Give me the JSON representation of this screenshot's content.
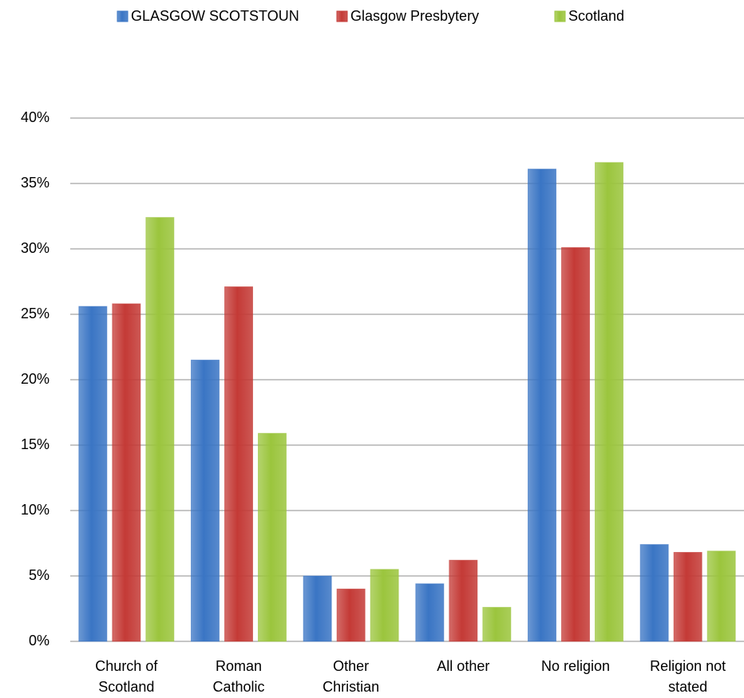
{
  "chart_data": {
    "type": "bar",
    "categories": [
      "Church of Scotland",
      "Roman Catholic",
      "Other Christian",
      "All other",
      "No religion",
      "Religion not stated"
    ],
    "series": [
      {
        "name": "GLASGOW SCOTSTOUN",
        "color": "#3a75c4",
        "values": [
          25.6,
          21.5,
          5.0,
          4.4,
          36.1,
          7.4
        ]
      },
      {
        "name": "Glasgow Presbytery",
        "color": "#c43a36",
        "values": [
          25.8,
          27.1,
          4.0,
          6.2,
          30.1,
          6.8
        ]
      },
      {
        "name": "Scotland",
        "color": "#9bc53d",
        "values": [
          32.4,
          15.9,
          5.5,
          2.6,
          36.6,
          6.9
        ]
      }
    ],
    "ylim": [
      0,
      40
    ],
    "yticks": [
      {
        "value": 0,
        "label": "0%"
      },
      {
        "value": 5,
        "label": "5%"
      },
      {
        "value": 10,
        "label": "10%"
      },
      {
        "value": 15,
        "label": "15%"
      },
      {
        "value": 20,
        "label": "20%"
      },
      {
        "value": 25,
        "label": "25%"
      },
      {
        "value": 30,
        "label": "30%"
      },
      {
        "value": 35,
        "label": "35%"
      },
      {
        "value": 40,
        "label": "40%"
      }
    ],
    "grid": true,
    "legend": "top"
  }
}
